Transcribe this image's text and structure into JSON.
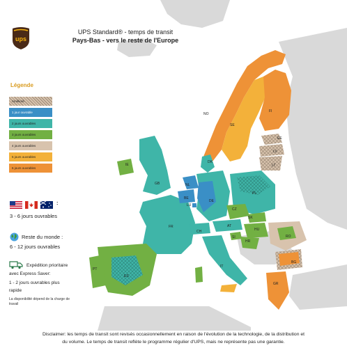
{
  "title": "UPS Standard® - temps de transit",
  "subtitle": "Pays-Bas - vers le reste de l'Europe",
  "logo_text": "ups",
  "legend": {
    "title": "Légende",
    "items": [
      {
        "label": "Amélioré",
        "color": "#e6e2dc",
        "pattern": true
      },
      {
        "label": "1 jour ouvrable",
        "color": "#3a8fc6"
      },
      {
        "label": "2 jours ouvrables",
        "color": "#3fb5a8"
      },
      {
        "label": "3 jours ouvrables",
        "color": "#72b043"
      },
      {
        "label": "4 jours ouvrables",
        "color": "#d8c3ad"
      },
      {
        "label": "5 jours ouvrables",
        "color": "#f3b13a"
      },
      {
        "label": "6 jours ouvrables",
        "color": "#ee9237"
      }
    ]
  },
  "us_ca_au": {
    "colon": ":",
    "text": "3 - 6 jours ouvrables"
  },
  "rest_world": {
    "label": "Reste du monde :",
    "text": "6 - 12 jours ouvrables"
  },
  "express": {
    "line1": "Expédition prioritaire",
    "line2": "avec Express Saver:",
    "line3": "1 - 2 jours ouvrables plus",
    "line4": "rapide",
    "line5": "La disponibilité dépend de la charge de",
    "line6": "travail"
  },
  "disclaimer_line1": "Disclaimer: les temps de transit sont revisés occasionnellement en raison de l'évolution de la technologie, de la distribution et",
  "disclaimer_line2": "du volume. Le temps de transit reflète le programme régulier d'UPS, mais ne représente pas une garantie.",
  "countries": [
    "NO",
    "SE",
    "FI",
    "EE",
    "LV",
    "LT",
    "DK",
    "IE",
    "GB",
    "NL",
    "BE",
    "LU",
    "DE",
    "PL",
    "CZ",
    "SK",
    "AT",
    "HU",
    "CH",
    "SI",
    "HR",
    "RO",
    "FR",
    "IT",
    "PT",
    "ES",
    "BG",
    "GR"
  ],
  "colors": {
    "background_land": "#d9d9d9",
    "sea": "#ffffff",
    "ups_brown": "#4a2a17",
    "ups_gold": "#f7b40d"
  }
}
